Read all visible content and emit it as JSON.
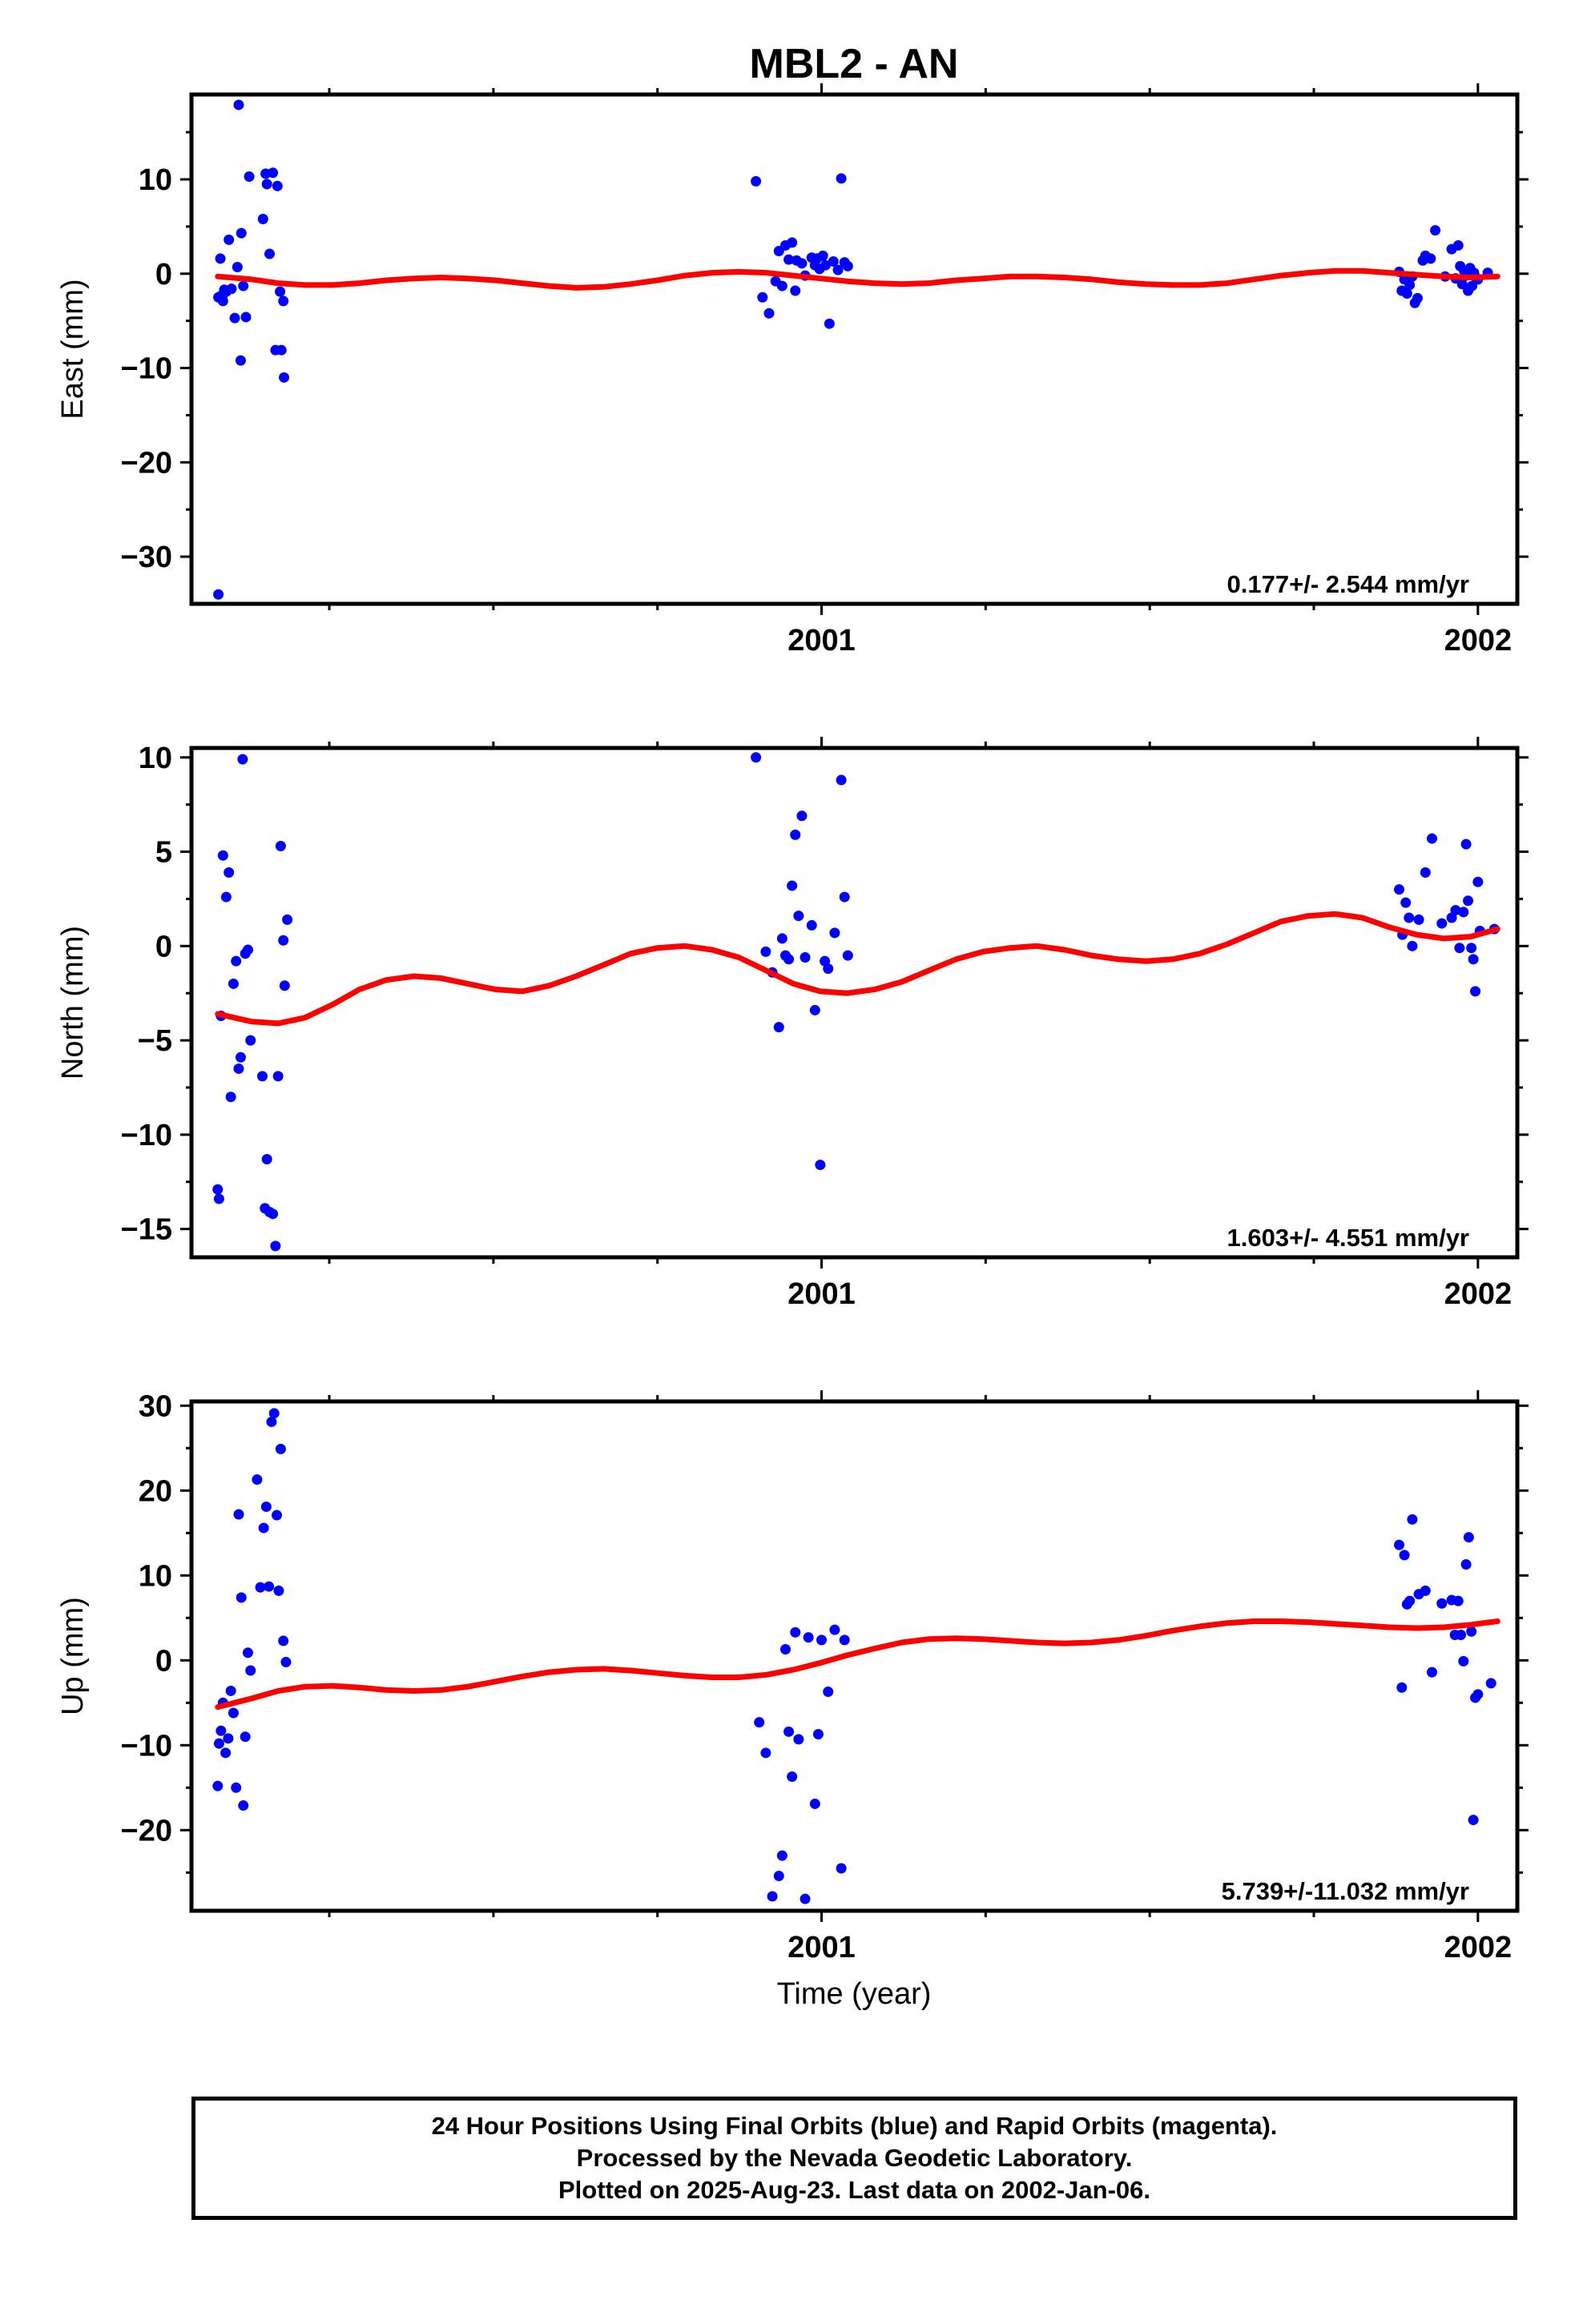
{
  "title": "MBL2 - AN",
  "xlabel": "Time (year)",
  "colors": {
    "data": "#0000ff",
    "model": "#ff0000",
    "frame": "#000000"
  },
  "footer": {
    "line1": "24 Hour Positions Using Final Orbits (blue) and Rapid Orbits (magenta).",
    "line2": "Processed by the Nevada Geodetic Laboratory.",
    "line3": "Plotted on 2025-Aug-23. Last data on 2002-Jan-06."
  },
  "chart_data": [
    {
      "type": "scatter",
      "ylabel": "East (mm)",
      "xlim": [
        2000.04,
        2002.06
      ],
      "ylim": [
        -35,
        19
      ],
      "xticks": [
        2001,
        2002
      ],
      "xtick_labels": [
        "2001",
        "2002"
      ],
      "yticks": [
        -30,
        -20,
        -10,
        0,
        10
      ],
      "yticks_minor": [
        -25,
        -15,
        -5,
        5,
        15
      ],
      "rate": "0.177+/- 2.544 mm/yr",
      "series": [
        {
          "kind": "points",
          "x": [
            2000.081,
            2000.081,
            2000.084,
            2000.086,
            2000.088,
            2000.09,
            2000.093,
            2000.097,
            2000.101,
            2000.106,
            2000.11,
            2000.112,
            2000.115,
            2000.119,
            2000.123,
            2000.128,
            2000.149,
            2000.153,
            2000.155,
            2000.159,
            2000.164,
            2000.168,
            2000.171,
            2000.175,
            2000.177,
            2000.18,
            2000.181,
            2000.116,
            2000.087
          ],
          "y": [
            -34,
            -2.5,
            1.6,
            -2.3,
            -2.9,
            -1.7,
            -1.9,
            3.6,
            -1.6,
            -4.7,
            0.7,
            17.9,
            -9.2,
            -1.3,
            -4.6,
            10.3,
            5.8,
            10.6,
            9.5,
            2.1,
            10.7,
            -8.1,
            9.3,
            -1.9,
            -8.1,
            -2.9,
            -11,
            4.3,
            -2.4
          ]
        },
        {
          "kind": "points",
          "x": [
            2000.9,
            2000.91,
            2000.92,
            2000.93,
            2000.935,
            2000.94,
            2000.945,
            2000.95,
            2000.955,
            2000.96,
            2000.962,
            2000.97,
            2000.975,
            2000.985,
            2000.99,
            2000.993,
            2000.997,
            2001.002,
            2001.006,
            2001.012,
            2001.018,
            2001.025,
            2001.03,
            2001.035,
            2001.04
          ],
          "y": [
            9.8,
            -2.5,
            -4.2,
            -0.8,
            2.4,
            -1.3,
            3,
            1.5,
            3.3,
            -1.8,
            1.4,
            1.1,
            -0.2,
            1.7,
            0.9,
            1.6,
            0.5,
            1.9,
            0.9,
            -5.3,
            1.3,
            0.4,
            10.1,
            1.2,
            0.8
          ]
        },
        {
          "kind": "points",
          "x": [
            2001.88,
            2001.884,
            2001.888,
            2001.892,
            2001.896,
            2001.9,
            2001.904,
            2001.908,
            2001.916,
            2001.92,
            2001.928,
            2001.935,
            2001.95,
            2001.96,
            2001.966,
            2001.97,
            2001.973,
            2001.976,
            2001.979,
            2001.982,
            2001.985,
            2001.988,
            2001.991,
            2001.994,
            2001.997,
            2002.0,
            2002.015
          ],
          "y": [
            0.2,
            -1.8,
            -0.6,
            -2.1,
            -1.2,
            -0.3,
            -3.1,
            -2.6,
            1.4,
            1.9,
            1.6,
            4.6,
            -0.3,
            2.6,
            -0.5,
            3.0,
            0.8,
            -1.1,
            0.3,
            -0.2,
            -1.8,
            0.6,
            -1.3,
            0.1,
            -0.4,
            -0.6,
            0.1
          ]
        },
        {
          "kind": "line",
          "x": [
            2000.08,
            2000.131,
            2000.172,
            2000.213,
            2000.255,
            2000.296,
            2000.337,
            2000.379,
            2000.42,
            2000.461,
            2000.503,
            2000.544,
            2000.585,
            2000.626,
            2000.668,
            2000.709,
            2000.75,
            2000.792,
            2000.833,
            2000.874,
            2000.916,
            2000.957,
            2000.998,
            2001.039,
            2001.081,
            2001.122,
            2001.163,
            2001.205,
            2001.246,
            2001.287,
            2001.328,
            2001.37,
            2001.411,
            2001.452,
            2001.494,
            2001.535,
            2001.576,
            2001.618,
            2001.659,
            2001.7,
            2001.742,
            2001.783,
            2001.824,
            2001.865,
            2001.907,
            2001.948,
            2001.989,
            2002.03
          ],
          "y": [
            -0.3,
            -0.6,
            -1.0,
            -1.2,
            -1.2,
            -1.0,
            -0.7,
            -0.5,
            -0.4,
            -0.5,
            -0.7,
            -1.0,
            -1.3,
            -1.5,
            -1.4,
            -1.1,
            -0.7,
            -0.2,
            0.1,
            0.2,
            0.1,
            -0.2,
            -0.5,
            -0.8,
            -1.0,
            -1.1,
            -1.0,
            -0.7,
            -0.5,
            -0.3,
            -0.3,
            -0.4,
            -0.6,
            -0.9,
            -1.1,
            -1.2,
            -1.2,
            -1.0,
            -0.6,
            -0.2,
            0.1,
            0.3,
            0.3,
            0.1,
            -0.1,
            -0.3,
            -0.4,
            -0.3
          ]
        }
      ]
    },
    {
      "type": "scatter",
      "ylabel": "North (mm)",
      "xlim": [
        2000.04,
        2002.06
      ],
      "ylim": [
        -16.5,
        10.5
      ],
      "xticks": [
        2001,
        2002
      ],
      "xtick_labels": [
        "2001",
        "2002"
      ],
      "yticks": [
        -15,
        -10,
        -5,
        0,
        5,
        10
      ],
      "yticks_minor": [
        -12.5,
        -7.5,
        -2.5,
        2.5,
        7.5
      ],
      "rate": "1.603+/- 4.551 mm/yr",
      "series": [
        {
          "kind": "points",
          "x": [
            2000.08,
            2000.082,
            2000.085,
            2000.088,
            2000.093,
            2000.097,
            2000.1,
            2000.104,
            2000.108,
            2000.112,
            2000.115,
            2000.118,
            2000.122,
            2000.126,
            2000.13,
            2000.148,
            2000.152,
            2000.155,
            2000.159,
            2000.164,
            2000.168,
            2000.172,
            2000.176,
            2000.18,
            2000.182,
            2000.186
          ],
          "y": [
            -12.9,
            -13.4,
            -3.7,
            4.8,
            2.6,
            3.9,
            -8.0,
            -2.0,
            -0.8,
            -6.5,
            -5.9,
            9.9,
            -0.4,
            -0.2,
            -5.0,
            -6.9,
            -13.9,
            -11.3,
            -14.1,
            -14.2,
            -15.9,
            -6.9,
            5.3,
            0.3,
            -2.1,
            1.4
          ]
        },
        {
          "kind": "points",
          "x": [
            2000.9,
            2000.915,
            2000.925,
            2000.935,
            2000.94,
            2000.945,
            2000.95,
            2000.955,
            2000.96,
            2000.965,
            2000.97,
            2000.975,
            2000.985,
            2000.99,
            2000.998,
            2001.005,
            2001.01,
            2001.02,
            2001.03,
            2001.035,
            2001.04
          ],
          "y": [
            10.0,
            -0.3,
            -1.4,
            -4.3,
            0.4,
            -0.5,
            -0.7,
            3.2,
            5.9,
            1.6,
            6.9,
            -0.6,
            1.1,
            -3.4,
            -11.6,
            -0.8,
            -1.2,
            0.7,
            8.8,
            2.6,
            -0.5
          ]
        },
        {
          "kind": "points",
          "x": [
            2001.88,
            2001.885,
            2001.89,
            2001.895,
            2001.9,
            2001.91,
            2001.92,
            2001.93,
            2001.945,
            2001.96,
            2001.966,
            2001.972,
            2001.978,
            2001.982,
            2001.985,
            2001.99,
            2001.993,
            2001.996,
            2002.0,
            2002.003,
            2002.025
          ],
          "y": [
            3.0,
            0.6,
            2.3,
            1.5,
            0.0,
            1.4,
            3.9,
            5.7,
            1.2,
            1.5,
            1.9,
            -0.1,
            1.8,
            5.4,
            2.4,
            -0.1,
            -0.7,
            -2.4,
            3.4,
            0.8,
            0.9
          ]
        },
        {
          "kind": "line",
          "x": [
            2000.08,
            2000.131,
            2000.172,
            2000.213,
            2000.255,
            2000.296,
            2000.337,
            2000.379,
            2000.42,
            2000.461,
            2000.503,
            2000.544,
            2000.585,
            2000.626,
            2000.668,
            2000.709,
            2000.75,
            2000.792,
            2000.833,
            2000.874,
            2000.916,
            2000.957,
            2000.998,
            2001.039,
            2001.081,
            2001.122,
            2001.163,
            2001.205,
            2001.246,
            2001.287,
            2001.328,
            2001.37,
            2001.411,
            2001.452,
            2001.494,
            2001.535,
            2001.576,
            2001.618,
            2001.659,
            2001.7,
            2001.742,
            2001.783,
            2001.824,
            2001.865,
            2001.907,
            2001.948,
            2001.989,
            2002.03
          ],
          "y": [
            -3.6,
            -4.0,
            -4.1,
            -3.8,
            -3.1,
            -2.3,
            -1.8,
            -1.6,
            -1.7,
            -2.0,
            -2.3,
            -2.4,
            -2.1,
            -1.6,
            -1.0,
            -0.4,
            -0.1,
            0.0,
            -0.2,
            -0.6,
            -1.3,
            -2.0,
            -2.4,
            -2.5,
            -2.3,
            -1.9,
            -1.3,
            -0.7,
            -0.3,
            -0.1,
            0.0,
            -0.2,
            -0.5,
            -0.7,
            -0.8,
            -0.7,
            -0.4,
            0.1,
            0.7,
            1.3,
            1.6,
            1.7,
            1.5,
            1.0,
            0.6,
            0.4,
            0.5,
            0.9
          ]
        }
      ]
    },
    {
      "type": "scatter",
      "ylabel": "Up (mm)",
      "xlim": [
        2000.04,
        2002.06
      ],
      "ylim": [
        -29.5,
        30.5
      ],
      "xticks": [
        2001,
        2002
      ],
      "xtick_labels": [
        "2001",
        "2002"
      ],
      "yticks": [
        -20,
        -10,
        0,
        10,
        20,
        30
      ],
      "yticks_minor": [
        -25,
        -15,
        -5,
        5,
        15,
        25
      ],
      "rate": "5.739+/-11.032 mm/yr",
      "series": [
        {
          "kind": "points",
          "x": [
            2000.08,
            2000.082,
            2000.085,
            2000.088,
            2000.092,
            2000.096,
            2000.1,
            2000.104,
            2000.108,
            2000.112,
            2000.116,
            2000.119,
            2000.122,
            2000.126,
            2000.13,
            2000.14,
            2000.145,
            2000.15,
            2000.154,
            2000.158,
            2000.162,
            2000.166,
            2000.17,
            2000.173,
            2000.176,
            2000.18,
            2000.184
          ],
          "y": [
            -14.8,
            -9.8,
            -8.3,
            -5.0,
            -10.9,
            -9.2,
            -3.6,
            -6.2,
            -15.0,
            17.2,
            7.4,
            -17.1,
            -9.0,
            0.9,
            -1.2,
            21.3,
            8.6,
            15.6,
            18.1,
            8.7,
            28.1,
            29.1,
            17.1,
            8.2,
            24.9,
            2.3,
            -0.2
          ]
        },
        {
          "kind": "points",
          "x": [
            2000.905,
            2000.915,
            2000.925,
            2000.935,
            2000.94,
            2000.945,
            2000.95,
            2000.955,
            2000.96,
            2000.965,
            2000.975,
            2000.98,
            2000.99,
            2000.995,
            2001.0,
            2001.01,
            2001.02,
            2001.03,
            2001.035
          ],
          "y": [
            -7.3,
            -10.9,
            -27.8,
            -25.4,
            -23.0,
            1.3,
            -8.4,
            -13.7,
            3.3,
            -9.3,
            -28.1,
            2.7,
            -16.9,
            -8.7,
            2.4,
            -3.7,
            3.6,
            -24.5,
            2.4
          ]
        },
        {
          "kind": "points",
          "x": [
            2001.88,
            2001.884,
            2001.888,
            2001.892,
            2001.896,
            2001.9,
            2001.91,
            2001.92,
            2001.93,
            2001.945,
            2001.96,
            2001.965,
            2001.97,
            2001.974,
            2001.978,
            2001.982,
            2001.986,
            2001.99,
            2001.993,
            2001.996,
            2002.0,
            2002.02
          ],
          "y": [
            13.6,
            -3.2,
            12.4,
            6.6,
            7.0,
            16.6,
            7.8,
            8.2,
            -1.4,
            6.7,
            7.1,
            3.0,
            7.0,
            3.0,
            -0.1,
            11.3,
            14.5,
            3.4,
            -18.8,
            -4.4,
            -4.0,
            -2.7
          ]
        },
        {
          "kind": "line",
          "x": [
            2000.08,
            2000.131,
            2000.172,
            2000.213,
            2000.255,
            2000.296,
            2000.337,
            2000.379,
            2000.42,
            2000.461,
            2000.503,
            2000.544,
            2000.585,
            2000.626,
            2000.668,
            2000.709,
            2000.75,
            2000.792,
            2000.833,
            2000.874,
            2000.916,
            2000.957,
            2000.998,
            2001.039,
            2001.081,
            2001.122,
            2001.163,
            2001.205,
            2001.246,
            2001.287,
            2001.328,
            2001.37,
            2001.411,
            2001.452,
            2001.494,
            2001.535,
            2001.576,
            2001.618,
            2001.659,
            2001.7,
            2001.742,
            2001.783,
            2001.824,
            2001.865,
            2001.907,
            2001.948,
            2001.989,
            2002.03
          ],
          "y": [
            -5.5,
            -4.5,
            -3.6,
            -3.1,
            -3.0,
            -3.2,
            -3.5,
            -3.6,
            -3.5,
            -3.1,
            -2.5,
            -1.9,
            -1.4,
            -1.1,
            -1.0,
            -1.2,
            -1.5,
            -1.8,
            -2.0,
            -2.0,
            -1.7,
            -1.1,
            -0.3,
            0.6,
            1.4,
            2.1,
            2.5,
            2.6,
            2.5,
            2.3,
            2.1,
            2.0,
            2.1,
            2.4,
            2.9,
            3.5,
            4.0,
            4.4,
            4.6,
            4.6,
            4.5,
            4.3,
            4.1,
            3.9,
            3.8,
            3.9,
            4.2,
            4.6
          ]
        }
      ]
    }
  ]
}
